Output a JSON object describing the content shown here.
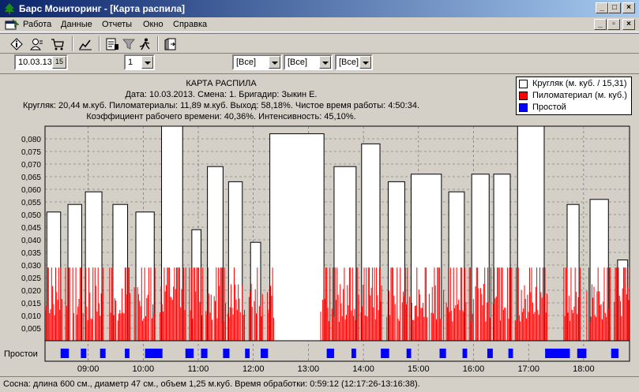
{
  "window": {
    "title": "Барс Мониторинг - [Карта распила]",
    "minimize_label": "_",
    "maximize_label": "□",
    "close_label": "×",
    "mdi_minimize_label": "_",
    "mdi_restore_label": "▫",
    "mdi_close_label": "×"
  },
  "menu": {
    "items": [
      "Работа",
      "Данные",
      "Отчеты",
      "Окно",
      "Справка"
    ]
  },
  "toolbar": {
    "icons": [
      "info-icon",
      "users-icon",
      "cart-icon",
      "chart-icon",
      "report-list-icon",
      "filter-icon",
      "run-icon",
      "exit-door-icon"
    ]
  },
  "filters": {
    "date": "10.03.13",
    "calendar_button": "15",
    "shift": "1",
    "filter1": "[Все]",
    "filter2": "[Все]",
    "filter3": "[Все]"
  },
  "report": {
    "title": "КАРТА РАСПИЛА",
    "line1": "Дата: 10.03.2013. Смена: 1. Бригадир: Зыкин Е.",
    "line2": "Кругляк: 20,44 м.куб. Пиломатериалы: 11,89 м.куб. Выход: 58,18%. Чистое время работы: 4:50:34.",
    "line3": "Коэффициент рабочего времени: 40,36%. Интенсивность: 45,10%."
  },
  "legend": [
    {
      "label": "Кругляк (м. куб. / 15,31)",
      "color": "#ffffff"
    },
    {
      "label": "Пиломатериал (м. куб.)",
      "color": "#ff0000"
    },
    {
      "label": "Простой",
      "color": "#0000ff"
    }
  ],
  "chart_data": {
    "type": "bar",
    "ylabel": "",
    "xlabel": "",
    "ylim": [
      0,
      0.085
    ],
    "yticks": [
      "0,005",
      "0,010",
      "0,015",
      "0,020",
      "0,025",
      "0,030",
      "0,035",
      "0,040",
      "0,045",
      "0,050",
      "0,055",
      "0,060",
      "0,065",
      "0,070",
      "0,075",
      "0,080"
    ],
    "xlim": [
      "08:13",
      "18:50"
    ],
    "xticks": [
      "09:00",
      "10:00",
      "11:00",
      "12:00",
      "13:00",
      "14:00",
      "15:00",
      "16:00",
      "17:00",
      "18:00"
    ],
    "downtime_label": "Простои",
    "series": [
      {
        "name": "Кругляк (м. куб. / 15,31)",
        "color": "#ffffff",
        "bars": [
          {
            "start": "08:15",
            "end": "08:30",
            "value": 0.051
          },
          {
            "start": "08:38",
            "end": "08:53",
            "value": 0.054
          },
          {
            "start": "08:57",
            "end": "09:15",
            "value": 0.059
          },
          {
            "start": "09:27",
            "end": "09:43",
            "value": 0.054
          },
          {
            "start": "09:52",
            "end": "10:12",
            "value": 0.051
          },
          {
            "start": "10:20",
            "end": "10:43",
            "value": 0.085
          },
          {
            "start": "10:53",
            "end": "11:03",
            "value": 0.044
          },
          {
            "start": "11:10",
            "end": "11:27",
            "value": 0.069
          },
          {
            "start": "11:33",
            "end": "11:48",
            "value": 0.063
          },
          {
            "start": "11:57",
            "end": "12:08",
            "value": 0.039
          },
          {
            "start": "12:18",
            "end": "13:17",
            "value": 0.082
          },
          {
            "start": "13:28",
            "end": "13:52",
            "value": 0.069
          },
          {
            "start": "13:58",
            "end": "14:18",
            "value": 0.078
          },
          {
            "start": "14:27",
            "end": "14:45",
            "value": 0.063
          },
          {
            "start": "14:52",
            "end": "15:25",
            "value": 0.066
          },
          {
            "start": "15:33",
            "end": "15:50",
            "value": 0.059
          },
          {
            "start": "15:58",
            "end": "16:17",
            "value": 0.066
          },
          {
            "start": "16:22",
            "end": "16:40",
            "value": 0.066
          },
          {
            "start": "16:48",
            "end": "17:17",
            "value": 0.085
          },
          {
            "start": "17:42",
            "end": "17:55",
            "value": 0.054
          },
          {
            "start": "18:07",
            "end": "18:27",
            "value": 0.056
          },
          {
            "start": "18:37",
            "end": "18:48",
            "value": 0.032
          }
        ]
      },
      {
        "name": "Пиломатериал (м. куб.)",
        "color": "#ff0000",
        "max": 0.029,
        "active_intervals": [
          [
            "08:13",
            "08:32"
          ],
          [
            "08:35",
            "08:55"
          ],
          [
            "08:57",
            "09:17"
          ],
          [
            "09:23",
            "09:46"
          ],
          [
            "09:50",
            "10:14"
          ],
          [
            "10:18",
            "10:46"
          ],
          [
            "10:50",
            "11:05"
          ],
          [
            "11:08",
            "11:30"
          ],
          [
            "11:32",
            "11:50"
          ],
          [
            "11:55",
            "12:10"
          ],
          [
            "12:15",
            "12:22"
          ],
          [
            "13:13",
            "13:55"
          ],
          [
            "13:57",
            "14:20"
          ],
          [
            "14:24",
            "14:48"
          ],
          [
            "14:50",
            "15:28"
          ],
          [
            "15:30",
            "15:52"
          ],
          [
            "15:55",
            "16:20"
          ],
          [
            "16:21",
            "16:42"
          ],
          [
            "16:45",
            "17:20"
          ],
          [
            "17:38",
            "17:58"
          ],
          [
            "18:03",
            "18:30"
          ],
          [
            "18:33",
            "18:50"
          ]
        ]
      },
      {
        "name": "Простой",
        "color": "#0000ff",
        "intervals": [
          [
            "08:30",
            "08:39"
          ],
          [
            "08:52",
            "08:58"
          ],
          [
            "09:13",
            "09:19"
          ],
          [
            "09:40",
            "09:45"
          ],
          [
            "10:02",
            "10:21"
          ],
          [
            "10:46",
            "10:55"
          ],
          [
            "11:03",
            "11:10"
          ],
          [
            "11:27",
            "11:34"
          ],
          [
            "11:51",
            "11:56"
          ],
          [
            "12:08",
            "12:16"
          ],
          [
            "13:20",
            "13:28"
          ],
          [
            "13:47",
            "13:52"
          ],
          [
            "14:19",
            "14:28"
          ],
          [
            "14:47",
            "14:52"
          ],
          [
            "15:23",
            "15:30"
          ],
          [
            "15:48",
            "15:53"
          ],
          [
            "16:15",
            "16:21"
          ],
          [
            "16:38",
            "16:43"
          ],
          [
            "17:18",
            "17:45"
          ],
          [
            "17:53",
            "18:03"
          ],
          [
            "18:30",
            "18:38"
          ]
        ]
      }
    ]
  },
  "status": {
    "text": "Сосна: длина 600 см., диаметр 47 см., объем 1,25 м.куб. Время обработки: 0:59:12 (12:17:26-13:16:38)."
  }
}
